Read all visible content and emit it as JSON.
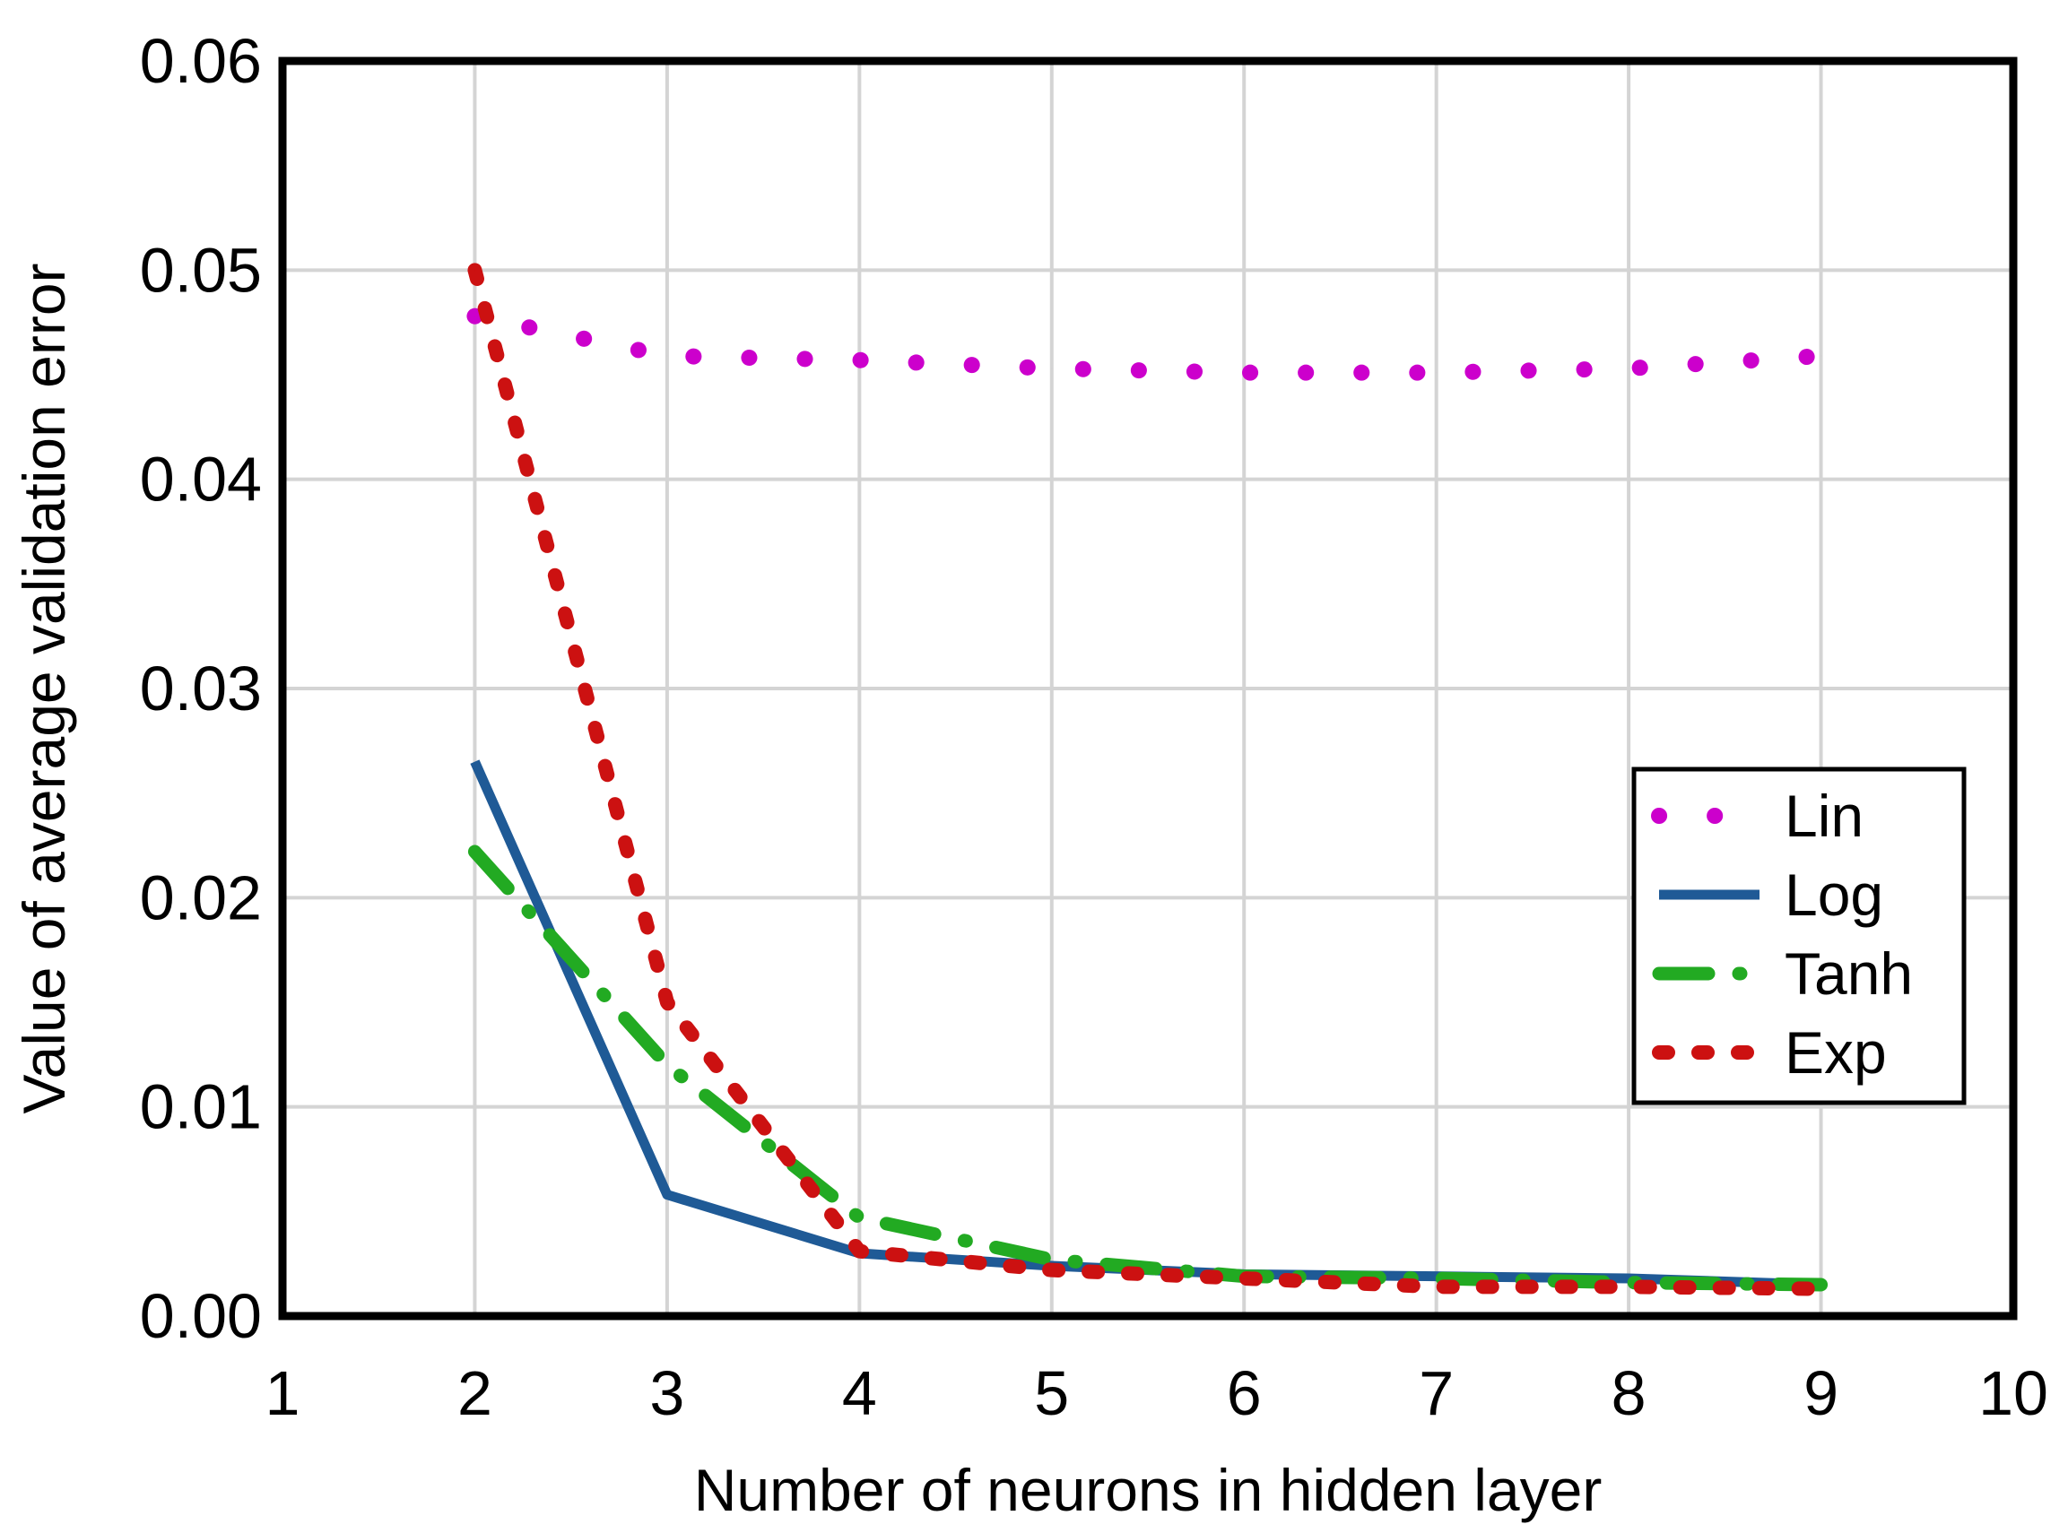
{
  "chart_data": {
    "type": "line",
    "xlabel": "Number of neurons in hidden layer",
    "ylabel": "Value of average validation error",
    "xlim": [
      1,
      10
    ],
    "ylim": [
      0,
      0.06
    ],
    "xticks": [
      "1",
      "2",
      "3",
      "4",
      "5",
      "6",
      "7",
      "8",
      "9",
      "10"
    ],
    "yticks": [
      "0.00",
      "0.01",
      "0.02",
      "0.03",
      "0.04",
      "0.05",
      "0.06"
    ],
    "grid": true,
    "legend_position": "right",
    "x": [
      2,
      3,
      4,
      5,
      6,
      7,
      8,
      9
    ],
    "series": [
      {
        "name": "Lin",
        "color": "#cc00cc",
        "style": "dotted",
        "values": [
          0.0478,
          0.0459,
          0.0457,
          0.0453,
          0.0451,
          0.0451,
          0.0453,
          0.0459
        ]
      },
      {
        "name": "Log",
        "color": "#1f5a96",
        "style": "solid",
        "values": [
          0.0265,
          0.0058,
          0.003,
          0.0024,
          0.002,
          0.0019,
          0.0018,
          0.0015
        ]
      },
      {
        "name": "Tanh",
        "color": "#22aa22",
        "style": "dashdot",
        "values": [
          0.0222,
          0.012,
          0.0047,
          0.0027,
          0.0019,
          0.0018,
          0.0016,
          0.0015
        ]
      },
      {
        "name": "Exp",
        "color": "#cc1111",
        "style": "dotted-thick",
        "values": [
          0.05,
          0.015,
          0.0031,
          0.0022,
          0.0018,
          0.0014,
          0.0014,
          0.0013
        ]
      }
    ]
  }
}
